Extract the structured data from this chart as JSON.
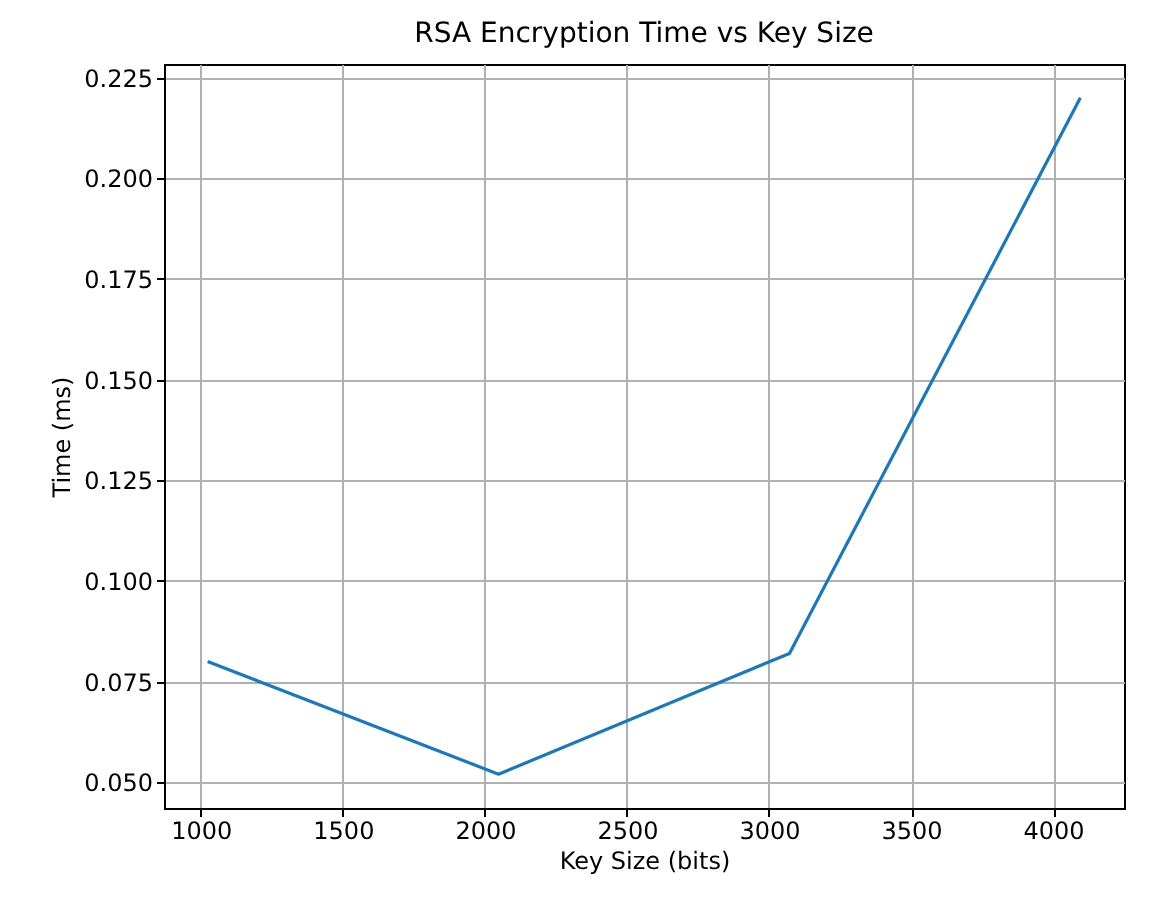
{
  "chart_data": {
    "type": "line",
    "title": "RSA Encryption Time vs Key Size",
    "xlabel": "Key Size (bits)",
    "ylabel": "Time (ms)",
    "x": [
      1024,
      2048,
      3072,
      4096
    ],
    "series": [
      {
        "color": "#1f77b4",
        "values": [
          0.08,
          0.052,
          0.082,
          0.22
        ]
      }
    ],
    "xlim": [
      870.4,
      4249.6
    ],
    "xticks": [
      1000,
      1500,
      2000,
      2500,
      3000,
      3500,
      4000
    ],
    "ylim": [
      0.0436,
      0.2284
    ],
    "yticks": [
      {
        "value": 0.05,
        "label": "0.050"
      },
      {
        "value": 0.075,
        "label": "0.075"
      },
      {
        "value": 0.1,
        "label": "0.100"
      },
      {
        "value": 0.125,
        "label": "0.125"
      },
      {
        "value": 0.15,
        "label": "0.150"
      },
      {
        "value": 0.175,
        "label": "0.175"
      },
      {
        "value": 0.2,
        "label": "0.200"
      },
      {
        "value": 0.225,
        "label": "0.225"
      }
    ],
    "grid": true,
    "legend": false,
    "marker": "none",
    "line_style": "solid"
  }
}
